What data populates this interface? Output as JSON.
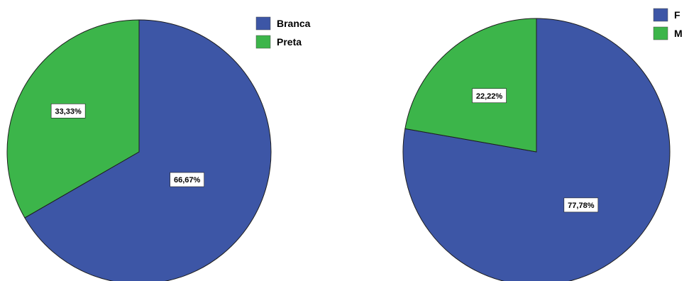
{
  "chart_data": [
    {
      "type": "pie",
      "categories": [
        "Branca",
        "Preta"
      ],
      "values": [
        66.67,
        33.33
      ],
      "data_labels": [
        "66,67%",
        "33,33%"
      ],
      "colors": [
        "#3d56a6",
        "#3cb54a"
      ],
      "start_angle": "12 o'clock, clockwise",
      "legend": {
        "placement": "top-right",
        "entries": [
          "Branca",
          "Preta"
        ]
      }
    },
    {
      "type": "pie",
      "categories": [
        "F",
        "M"
      ],
      "values": [
        77.78,
        22.22
      ],
      "data_labels": [
        "77,78%",
        "22,22%"
      ],
      "colors": [
        "#3d56a6",
        "#3cb54a"
      ],
      "start_angle": "12 o'clock, clockwise",
      "legend": {
        "placement": "top-right",
        "entries": [
          "F",
          "M"
        ]
      }
    }
  ]
}
